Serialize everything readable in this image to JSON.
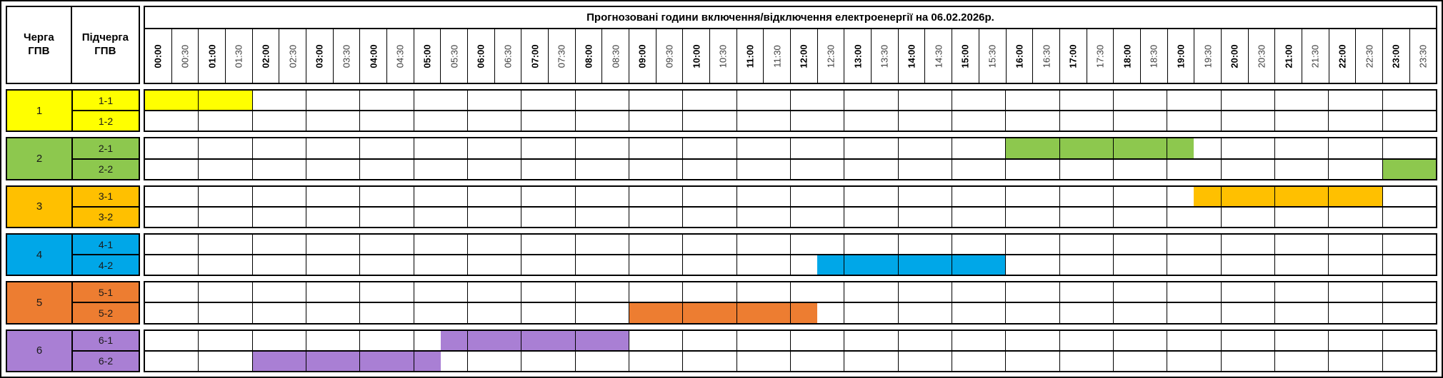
{
  "column_headers": {
    "queue": "Черга ГПВ",
    "subqueue": "Підчерга ГПВ"
  },
  "chart_data": {
    "type": "table",
    "title": "Прогнозовані години включення/відключення електроенергії на 06.02.2026р.",
    "x_axis": {
      "labels": [
        "00:00",
        "00:30",
        "01:00",
        "01:30",
        "02:00",
        "02:30",
        "03:00",
        "03:30",
        "04:00",
        "04:30",
        "05:00",
        "05:30",
        "06:00",
        "06:30",
        "07:00",
        "07:30",
        "08:00",
        "08:30",
        "09:00",
        "09:30",
        "10:00",
        "10:30",
        "11:00",
        "11:30",
        "12:00",
        "12:30",
        "13:00",
        "13:30",
        "14:00",
        "14:30",
        "15:00",
        "15:30",
        "16:00",
        "16:30",
        "17:00",
        "17:30",
        "18:00",
        "18:30",
        "19:00",
        "19:30",
        "20:00",
        "20:30",
        "21:00",
        "21:30",
        "22:00",
        "22:30",
        "23:00",
        "23:30"
      ]
    },
    "groups": [
      {
        "queue": "1",
        "color": "#FFFF00",
        "subqueues": [
          {
            "label": "1-1",
            "outages": [
              {
                "from": "00:00",
                "to": "02:00"
              }
            ]
          },
          {
            "label": "1-2",
            "outages": []
          }
        ]
      },
      {
        "queue": "2",
        "color": "#8DC84E",
        "subqueues": [
          {
            "label": "2-1",
            "outages": [
              {
                "from": "16:00",
                "to": "19:30"
              }
            ]
          },
          {
            "label": "2-2",
            "outages": [
              {
                "from": "23:00",
                "to": "24:00"
              }
            ]
          }
        ]
      },
      {
        "queue": "3",
        "color": "#FFC000",
        "subqueues": [
          {
            "label": "3-1",
            "outages": [
              {
                "from": "19:30",
                "to": "23:00"
              }
            ]
          },
          {
            "label": "3-2",
            "outages": []
          }
        ]
      },
      {
        "queue": "4",
        "color": "#00A7E8",
        "subqueues": [
          {
            "label": "4-1",
            "outages": []
          },
          {
            "label": "4-2",
            "outages": [
              {
                "from": "12:30",
                "to": "16:00"
              }
            ]
          }
        ]
      },
      {
        "queue": "5",
        "color": "#ED7D31",
        "subqueues": [
          {
            "label": "5-1",
            "outages": []
          },
          {
            "label": "5-2",
            "outages": [
              {
                "from": "09:00",
                "to": "12:30"
              }
            ]
          }
        ]
      },
      {
        "queue": "6",
        "color": "#A97FD4",
        "subqueues": [
          {
            "label": "6-1",
            "outages": [
              {
                "from": "05:30",
                "to": "09:00"
              }
            ]
          },
          {
            "label": "6-2",
            "outages": [
              {
                "from": "02:00",
                "to": "05:30"
              }
            ]
          }
        ]
      }
    ]
  }
}
